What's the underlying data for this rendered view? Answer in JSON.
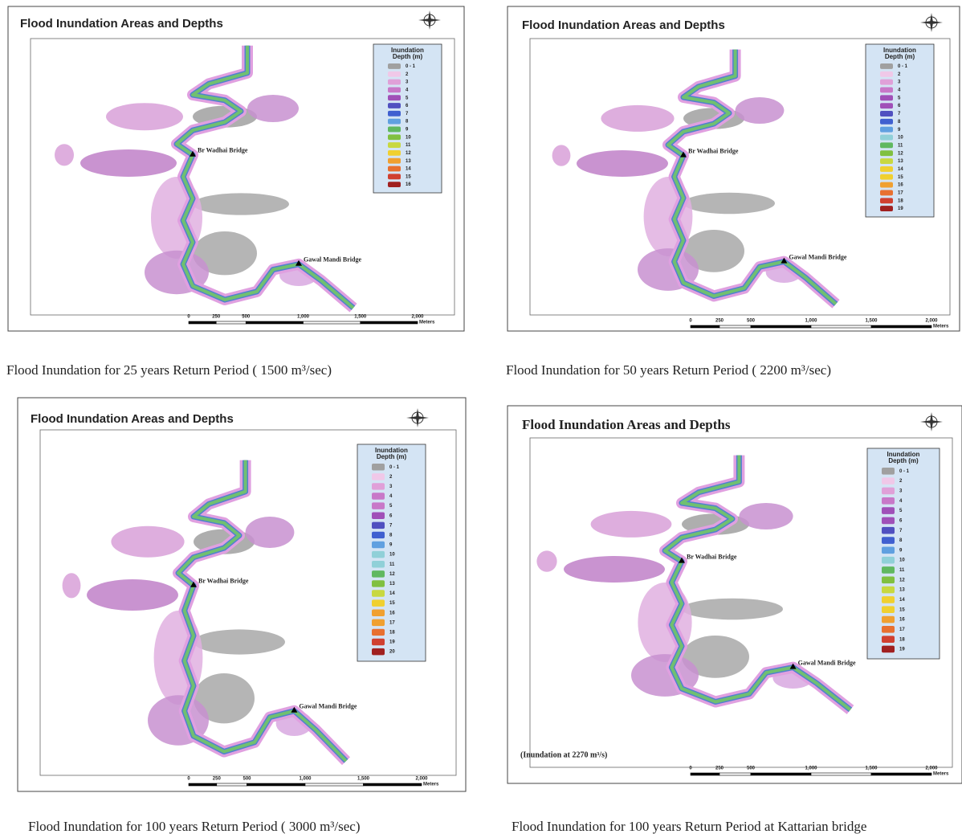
{
  "panels": [
    {
      "title": "Flood Inundation Areas and Depths",
      "legend_title": [
        "Inundation",
        "Depth (m)"
      ],
      "legend_labels": [
        "0 - 1",
        "2",
        "3",
        "4",
        "5",
        "6",
        "7",
        "8",
        "9",
        "10",
        "11",
        "12",
        "13",
        "14",
        "15",
        "16"
      ],
      "bridges": [
        "Br Wadhai Bridge",
        "Gawal Mandi Bridge"
      ],
      "scale_labels": [
        "0",
        "250",
        "500",
        "1,000",
        "1,500",
        "2,000"
      ],
      "scale_unit": "Meters",
      "caption": "Flood Inundation for 25 years Return Period ( 1500 m³/sec)"
    },
    {
      "title": "Flood Inundation Areas and Depths",
      "legend_title": [
        "Inundation",
        "Depth (m)"
      ],
      "legend_labels": [
        "0 - 1",
        "2",
        "3",
        "4",
        "5",
        "6",
        "7",
        "8",
        "9",
        "10",
        "11",
        "12",
        "13",
        "14",
        "15",
        "16",
        "17",
        "18",
        "19"
      ],
      "bridges": [
        "Br Wadhai Bridge",
        "Gawal Mandi Bridge"
      ],
      "scale_labels": [
        "0",
        "250",
        "500",
        "1,000",
        "1,500",
        "2,000"
      ],
      "scale_unit": "Meters",
      "caption": "Flood Inundation for 50 years Return Period ( 2200 m³/sec)"
    },
    {
      "title": "Flood Inundation Areas and Depths",
      "legend_title": [
        "Inundation",
        "Depth (m)"
      ],
      "legend_labels": [
        "0 - 1",
        "2",
        "3",
        "4",
        "5",
        "6",
        "7",
        "8",
        "9",
        "10",
        "11",
        "12",
        "13",
        "14",
        "15",
        "16",
        "17",
        "18",
        "19",
        "20"
      ],
      "bridges": [
        "Br Wadhai Bridge",
        "Gawal Mandi Bridge"
      ],
      "scale_labels": [
        "0",
        "250",
        "500",
        "1,000",
        "1,500",
        "2,000"
      ],
      "scale_unit": "Meters",
      "caption": "Flood Inundation for 100 years Return Period ( 3000 m³/sec)"
    },
    {
      "title": "Flood Inundation Areas and Depths",
      "legend_title": [
        "Inundation",
        "Depth (m)"
      ],
      "legend_labels": [
        "0 - 1",
        "2",
        "3",
        "4",
        "5",
        "6",
        "7",
        "8",
        "9",
        "10",
        "11",
        "12",
        "13",
        "14",
        "15",
        "16",
        "17",
        "18",
        "19"
      ],
      "bridges": [
        "Br Wadhai Bridge",
        "Gawal Mandi Bridge"
      ],
      "note": "(Inundation at 2270 m³/s)",
      "scale_labels": [
        "0",
        "250",
        "500",
        "1,000",
        "1,500",
        "2,000"
      ],
      "scale_unit": "Meters",
      "caption": "Flood Inundation for 100 years Return Period at Kattarian bridge"
    }
  ]
}
